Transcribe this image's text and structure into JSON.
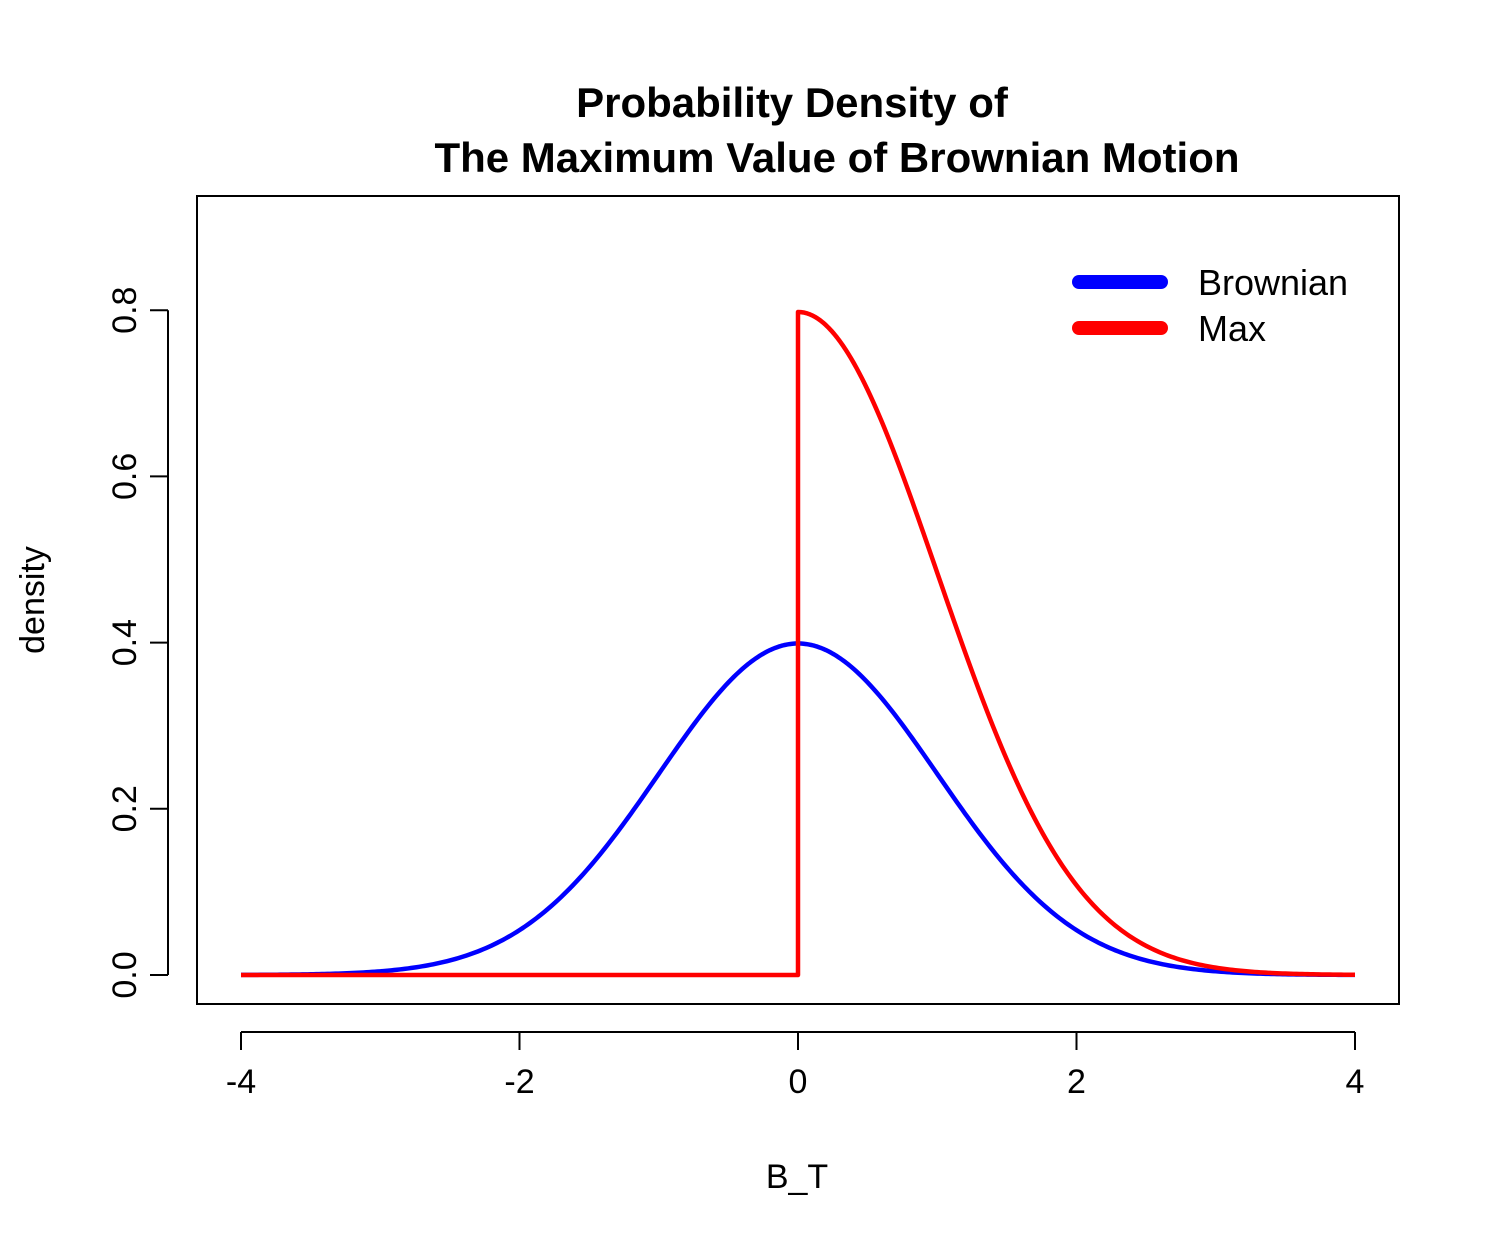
{
  "chart_data": {
    "type": "line",
    "title_line1": "Probability Density of",
    "title_line2": "The Maximum Value of Brownian Motion",
    "xlabel": "B_T",
    "ylabel": "density",
    "xlim": [
      -4,
      4
    ],
    "ylim": [
      0,
      0.95
    ],
    "x_ticks": [
      "-4",
      "-2",
      "0",
      "2",
      "4"
    ],
    "y_ticks": [
      "0.0",
      "0.2",
      "0.4",
      "0.6",
      "0.8"
    ],
    "grid": false,
    "legend_position": "top-right",
    "series": [
      {
        "name": "Brownian",
        "color": "#0000ff",
        "x": [
          -4,
          -3.5,
          -3,
          -2.5,
          -2,
          -1.5,
          -1,
          -0.5,
          0,
          0.5,
          1,
          1.5,
          2,
          2.5,
          3,
          3.5,
          4
        ],
        "y": [
          0.0001,
          0.0009,
          0.0044,
          0.0175,
          0.054,
          0.1295,
          0.242,
          0.352,
          0.399,
          0.352,
          0.242,
          0.1295,
          0.054,
          0.0175,
          0.0044,
          0.0009,
          0.0001
        ]
      },
      {
        "name": "Max",
        "color": "#ff0000",
        "x": [
          -4,
          -2,
          -1,
          0,
          0,
          0.25,
          0.5,
          0.75,
          1,
          1.25,
          1.5,
          1.75,
          2,
          2.5,
          3,
          3.5,
          4
        ],
        "y": [
          0,
          0,
          0,
          0,
          0.798,
          0.773,
          0.704,
          0.602,
          0.484,
          0.365,
          0.259,
          0.172,
          0.108,
          0.035,
          0.0089,
          0.0017,
          0.0003
        ]
      }
    ]
  }
}
